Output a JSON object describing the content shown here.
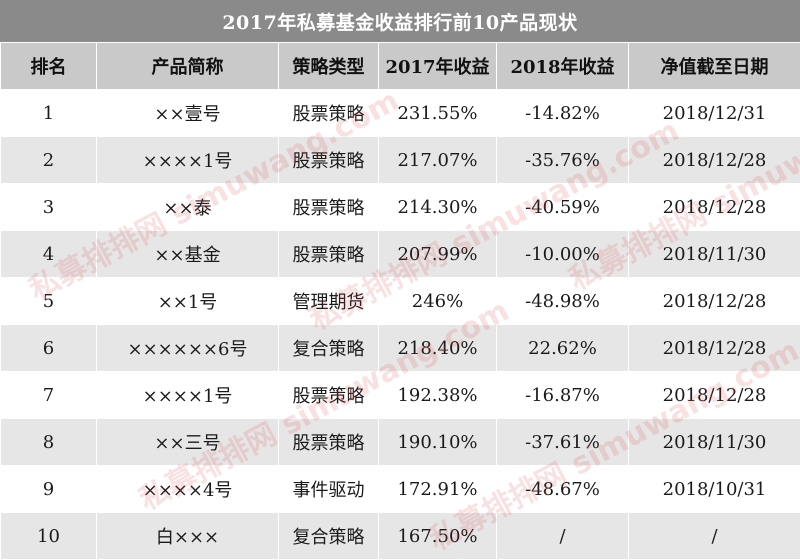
{
  "title": "2017年私募基金收益排行前10产品现状",
  "columns": [
    "排名",
    "产品简称",
    "策略类型",
    "2017年收益",
    "2018年收益",
    "净值截至日期"
  ],
  "rows": [
    {
      "rank": "1",
      "name": "××壹号",
      "strategy": "股票策略",
      "ret2017": "231.55%",
      "ret2018": "-14.82%",
      "date": "2018/12/31",
      "neg": true
    },
    {
      "rank": "2",
      "name": "××××1号",
      "strategy": "股票策略",
      "ret2017": "217.07%",
      "ret2018": "-35.76%",
      "date": "2018/12/28",
      "neg": true
    },
    {
      "rank": "3",
      "name": "××泰",
      "strategy": "股票策略",
      "ret2017": "214.30%",
      "ret2018": "-40.59%",
      "date": "2018/12/28",
      "neg": true
    },
    {
      "rank": "4",
      "name": "××基金",
      "strategy": "股票策略",
      "ret2017": "207.99%",
      "ret2018": "-10.00%",
      "date": "2018/11/30",
      "neg": true
    },
    {
      "rank": "5",
      "name": "××1号",
      "strategy": "管理期货",
      "ret2017": "246%",
      "ret2018": "-48.98%",
      "date": "2018/12/28",
      "neg": true
    },
    {
      "rank": "6",
      "name": "××××××6号",
      "strategy": "复合策略",
      "ret2017": "218.40%",
      "ret2018": "22.62%",
      "date": "2018/12/28",
      "neg": false
    },
    {
      "rank": "7",
      "name": "××××1号",
      "strategy": "股票策略",
      "ret2017": "192.38%",
      "ret2018": "-16.87%",
      "date": "2018/12/28",
      "neg": true
    },
    {
      "rank": "8",
      "name": "××三号",
      "strategy": "股票策略",
      "ret2017": "190.10%",
      "ret2018": "-37.61%",
      "date": "2018/11/30",
      "neg": true
    },
    {
      "rank": "9",
      "name": "××××4号",
      "strategy": "事件驱动",
      "ret2017": "172.91%",
      "ret2018": "-48.67%",
      "date": "2018/10/31",
      "neg": true
    },
    {
      "rank": "10",
      "name": "白×××",
      "strategy": "复合策略",
      "ret2017": "167.50%",
      "ret2018": "/",
      "date": "/",
      "neg": false
    }
  ],
  "colors": {
    "header_bg": "#c9c9c9",
    "title_bg": "#8a8a8a",
    "stripe": "#e6e6e6",
    "negative": "#e03a3a"
  },
  "watermark": "私募排排网 simuwang.com"
}
